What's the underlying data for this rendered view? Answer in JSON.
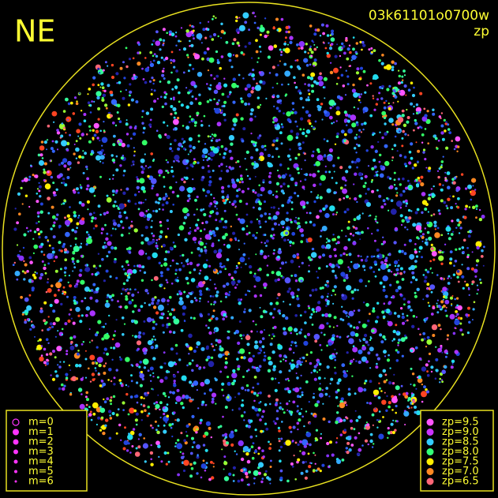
{
  "header": {
    "direction": "NE",
    "frame_id": "03k61101o0700w",
    "color_key": "zp"
  },
  "magnitude_legend": {
    "items": [
      "m=0",
      "m=1",
      "m=2",
      "m=3",
      "m=4",
      "m=5",
      "m=6"
    ]
  },
  "zp_legend": {
    "items": [
      {
        "label": "zp=9.5",
        "color": "#ff55ff"
      },
      {
        "label": "zp=9.0",
        "color": "#cc33ff"
      },
      {
        "label": "zp=8.5",
        "color": "#33ccff"
      },
      {
        "label": "zp=8.0",
        "color": "#33ff77"
      },
      {
        "label": "zp=7.5",
        "color": "#ffee00"
      },
      {
        "label": "zp=7.0",
        "color": "#ff8822"
      },
      {
        "label": "zp=6.5",
        "color": "#ff6677"
      }
    ]
  }
}
